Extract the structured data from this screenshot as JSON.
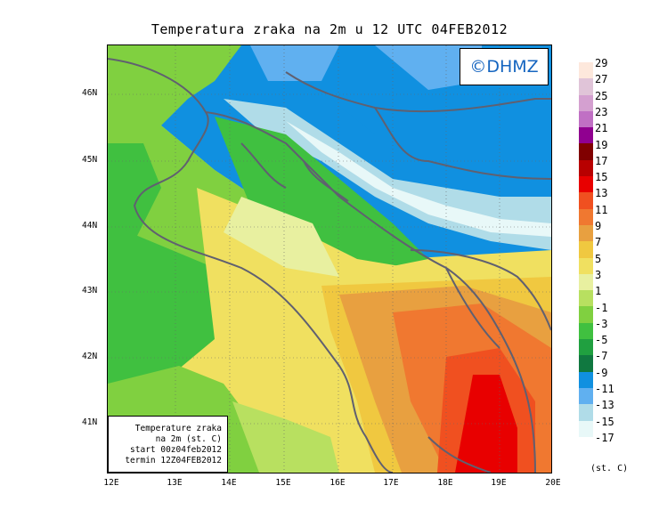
{
  "title": "Temperatura zraka na 2m u 12 UTC 04FEB2012",
  "logo": "©DHMZ",
  "infobox": {
    "line1": "Temperature zraka",
    "line2": "na 2m (st. C)",
    "line3": "start 00z04feb2012",
    "line4": "termin 12Z04FEB2012"
  },
  "axes": {
    "lat_labels": [
      "46N",
      "45N",
      "44N",
      "43N",
      "42N",
      "41N"
    ],
    "lon_labels": [
      "12E",
      "13E",
      "14E",
      "15E",
      "16E",
      "17E",
      "18E",
      "19E",
      "20E"
    ]
  },
  "legend": {
    "labels": [
      "29",
      "27",
      "25",
      "23",
      "21",
      "19",
      "17",
      "15",
      "13",
      "11",
      "9",
      "7",
      "5",
      "3",
      "1",
      "-1",
      "-3",
      "-5",
      "-7",
      "-9",
      "-11",
      "-13",
      "-15",
      "-17"
    ],
    "unit": "(st. C)",
    "colors": [
      "#fde8dc",
      "#e0c4d8",
      "#d4a0d0",
      "#c070c4",
      "#900090",
      "#800000",
      "#b80000",
      "#e80000",
      "#f05020",
      "#f07830",
      "#e8a040",
      "#f0c840",
      "#f0e060",
      "#e8f0a0",
      "#b8e060",
      "#80d040",
      "#40c040",
      "#20a040",
      "#107840",
      "#1090e0",
      "#60b0f0",
      "#b0dce8",
      "#e8f8f8"
    ]
  }
}
